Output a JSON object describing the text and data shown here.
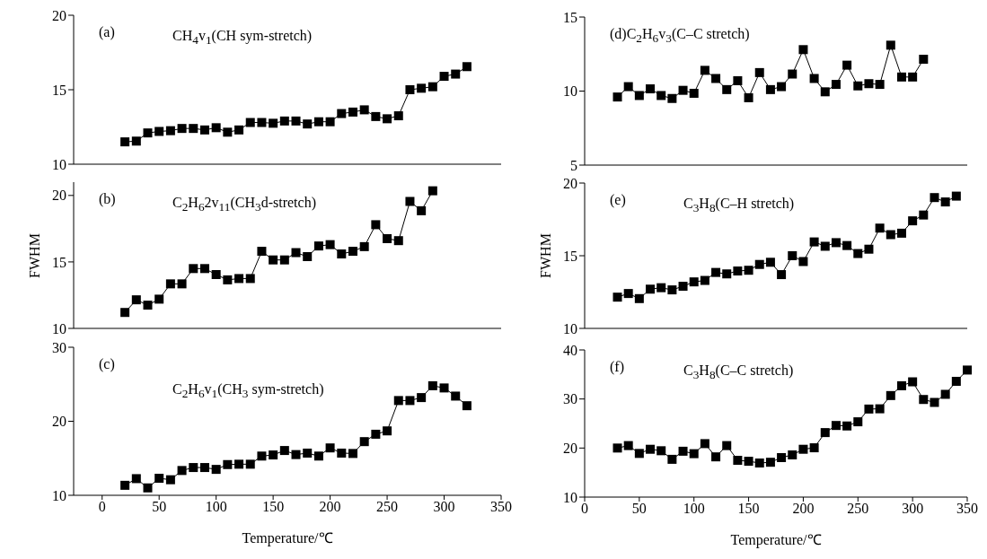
{
  "chart_data": [
    {
      "type": "line",
      "annotations": [
        "(a)",
        "CH$_{4}$v$_{1}$(CH sym-stretch)"
      ],
      "x": [
        20,
        30,
        40,
        50,
        60,
        70,
        80,
        90,
        100,
        110,
        120,
        130,
        140,
        150,
        160,
        170,
        180,
        190,
        200,
        210,
        220,
        230,
        240,
        250,
        260,
        270,
        280,
        290,
        300,
        310,
        320
      ],
      "series": [
        {
          "color": "#000000",
          "values": [
            11.5,
            11.55,
            12.1,
            12.2,
            12.25,
            12.4,
            12.4,
            12.3,
            12.45,
            12.15,
            12.3,
            12.8,
            12.8,
            12.75,
            12.9,
            12.9,
            12.7,
            12.85,
            12.85,
            13.4,
            13.5,
            13.65,
            13.2,
            13.05,
            13.25,
            15.0,
            15.1,
            15.2,
            15.9,
            16.05,
            16.55
          ]
        }
      ],
      "xlim": [
        -25,
        350
      ],
      "xticks": [
        0,
        50,
        100,
        150,
        200,
        250,
        300,
        350
      ],
      "ylim": [
        10,
        20
      ],
      "yticks": [
        10,
        15,
        20
      ],
      "tick_labels": "y",
      "marker": "square",
      "line_style": "solid"
    },
    {
      "type": "line",
      "annotations": [
        "(d)C$_{2}$H$_{6}$v$_{3}$(C–C stretch)"
      ],
      "x": [
        30,
        40,
        50,
        60,
        70,
        80,
        90,
        100,
        110,
        120,
        130,
        140,
        150,
        160,
        170,
        180,
        190,
        200,
        210,
        220,
        230,
        240,
        250,
        260,
        270,
        280,
        290,
        300,
        310
      ],
      "series": [
        {
          "color": "#000000",
          "values": [
            9.6,
            10.3,
            9.7,
            10.15,
            9.7,
            9.5,
            10.05,
            9.85,
            11.4,
            10.85,
            10.1,
            10.7,
            9.55,
            11.25,
            10.1,
            10.3,
            11.15,
            12.8,
            10.85,
            9.95,
            10.45,
            11.75,
            10.35,
            10.5,
            10.45,
            13.1,
            10.95,
            10.95,
            12.15
          ]
        }
      ],
      "xlim": [
        0,
        350
      ],
      "xticks": [
        0,
        50,
        100,
        150,
        200,
        250,
        300,
        350
      ],
      "ylim": [
        5,
        15
      ],
      "yticks": [
        5,
        10,
        15
      ],
      "tick_labels": "y",
      "marker": "square",
      "line_style": "solid"
    },
    {
      "type": "line",
      "ylabel": "FWHM",
      "annotations": [
        "(b)",
        "C$_{2}$H$_{6}$2v$_{11}$(CH$_{3}$d-stretch)"
      ],
      "x": [
        20,
        30,
        40,
        50,
        60,
        70,
        80,
        90,
        100,
        110,
        120,
        130,
        140,
        150,
        160,
        170,
        180,
        190,
        200,
        210,
        220,
        230,
        240,
        250,
        260,
        270,
        280,
        290
      ],
      "series": [
        {
          "color": "#000000",
          "values": [
            11.2,
            12.15,
            11.75,
            12.2,
            13.35,
            13.35,
            14.5,
            14.5,
            14.05,
            13.65,
            13.75,
            13.75,
            15.8,
            15.15,
            15.15,
            15.7,
            15.4,
            16.2,
            16.3,
            15.6,
            15.8,
            16.15,
            17.8,
            16.75,
            16.6,
            19.55,
            18.85,
            20.35
          ]
        }
      ],
      "xlim": [
        -25,
        350
      ],
      "xticks": [
        0,
        50,
        100,
        150,
        200,
        250,
        300,
        350
      ],
      "ylim": [
        10,
        21
      ],
      "yticks": [
        10,
        15,
        20
      ],
      "tick_labels": "y",
      "marker": "square",
      "line_style": "solid"
    },
    {
      "type": "line",
      "ylabel": "FWHM",
      "annotations": [
        "(e)",
        "C$_{3}$H$_{8}$(C–H stretch)"
      ],
      "x": [
        30,
        40,
        50,
        60,
        70,
        80,
        90,
        100,
        110,
        120,
        130,
        140,
        150,
        160,
        170,
        180,
        190,
        200,
        210,
        220,
        230,
        240,
        250,
        260,
        270,
        280,
        290,
        300,
        310,
        320,
        330,
        340
      ],
      "series": [
        {
          "color": "#000000",
          "values": [
            12.15,
            12.4,
            12.05,
            12.7,
            12.8,
            12.65,
            12.9,
            13.2,
            13.3,
            13.85,
            13.75,
            13.95,
            14.0,
            14.4,
            14.55,
            13.7,
            15.0,
            14.6,
            15.95,
            15.65,
            15.9,
            15.7,
            15.15,
            15.45,
            16.9,
            16.45,
            16.55,
            17.4,
            17.8,
            19.0,
            18.7,
            19.1
          ]
        }
      ],
      "xlim": [
        0,
        350
      ],
      "xticks": [
        0,
        50,
        100,
        150,
        200,
        250,
        300,
        350
      ],
      "ylim": [
        10,
        20
      ],
      "yticks": [
        10,
        15,
        20
      ],
      "tick_labels": "y",
      "marker": "square",
      "line_style": "solid"
    },
    {
      "type": "line",
      "xlabel": "Temperature/℃",
      "annotations": [
        "(c)",
        "C$_{2}$H$_{6}$v$_{1}$(CH$_{3}$ sym-stretch)"
      ],
      "x": [
        20,
        30,
        40,
        50,
        60,
        70,
        80,
        90,
        100,
        110,
        120,
        130,
        140,
        150,
        160,
        170,
        180,
        190,
        200,
        210,
        220,
        230,
        240,
        250,
        260,
        270,
        280,
        290,
        300,
        310,
        320
      ],
      "series": [
        {
          "color": "#000000",
          "values": [
            11.35,
            12.25,
            11.0,
            12.3,
            12.1,
            13.35,
            13.75,
            13.75,
            13.5,
            14.15,
            14.2,
            14.2,
            15.3,
            15.45,
            16.05,
            15.5,
            15.7,
            15.3,
            16.4,
            15.7,
            15.65,
            17.25,
            18.25,
            18.7,
            22.8,
            22.8,
            23.2,
            24.8,
            24.5,
            23.4,
            22.1
          ]
        }
      ],
      "xlim": [
        -25,
        350
      ],
      "xticks": [
        0,
        50,
        100,
        150,
        200,
        250,
        300,
        350
      ],
      "ylim": [
        10,
        30
      ],
      "yticks": [
        10,
        20,
        30
      ],
      "marker": "square",
      "line_style": "solid"
    },
    {
      "type": "line",
      "xlabel": "Temperature/℃",
      "annotations": [
        "(f)",
        "C$_{3}$H$_{8}$(C–C stretch)"
      ],
      "x": [
        30,
        40,
        50,
        60,
        70,
        80,
        90,
        100,
        110,
        120,
        130,
        140,
        150,
        160,
        170,
        180,
        190,
        200,
        210,
        220,
        230,
        240,
        250,
        260,
        270,
        280,
        290,
        300,
        310,
        320,
        330,
        340,
        350
      ],
      "series": [
        {
          "color": "#000000",
          "values": [
            20.0,
            20.5,
            18.9,
            19.75,
            19.45,
            17.7,
            19.35,
            18.85,
            20.9,
            18.2,
            20.5,
            17.5,
            17.3,
            16.95,
            17.1,
            18.05,
            18.6,
            19.75,
            20.05,
            23.15,
            24.6,
            24.5,
            25.35,
            27.95,
            28.0,
            30.7,
            32.7,
            33.5,
            29.9,
            29.3,
            30.95,
            33.6,
            35.9
          ]
        }
      ],
      "xlim": [
        0,
        350
      ],
      "xticks": [
        0,
        50,
        100,
        150,
        200,
        250,
        300,
        350
      ],
      "ylim": [
        10,
        40
      ],
      "yticks": [
        10,
        20,
        30,
        40
      ],
      "marker": "square",
      "line_style": "solid"
    }
  ]
}
